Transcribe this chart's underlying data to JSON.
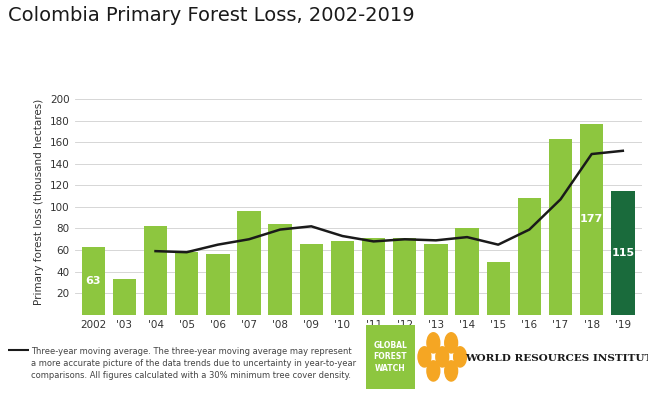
{
  "title": "Colombia Primary Forest Loss, 2002-2019",
  "ylabel": "Primary forest loss (thousand hectares)",
  "years": [
    2002,
    2003,
    2004,
    2005,
    2006,
    2007,
    2008,
    2009,
    2010,
    2011,
    2012,
    2013,
    2014,
    2015,
    2016,
    2017,
    2018,
    2019
  ],
  "bar_values": [
    63,
    33,
    82,
    58,
    56,
    96,
    84,
    66,
    68,
    71,
    71,
    66,
    80,
    49,
    108,
    163,
    177,
    115
  ],
  "bar_color_default": "#8dc63f",
  "bar_color_last": "#1a6b3c",
  "moving_avg": [
    null,
    null,
    59,
    58,
    65,
    70,
    79,
    82,
    73,
    68,
    70,
    69,
    72,
    65,
    79,
    107,
    149,
    152
  ],
  "line_color": "#1a1a1a",
  "ylim": [
    0,
    210
  ],
  "yticks": [
    0,
    20,
    40,
    60,
    80,
    100,
    120,
    140,
    160,
    180,
    200
  ],
  "tick_labels": [
    "2002",
    "'03",
    "'04",
    "'05",
    "'06",
    "'07",
    "'08",
    "'09",
    "'10",
    "'11",
    "'12",
    "'13",
    "'14",
    "'15",
    "'16",
    "'17",
    "'18",
    "'19"
  ],
  "bar_labels": {
    "0": "63",
    "16": "177",
    "17": "115"
  },
  "legend_text_line1": "—  Three-year moving average. The three-year moving average may represent",
  "legend_text_line2": "a more accurate picture of the data trends due to uncertainty in year-to-year",
  "legend_text_line3": "comparisons. All figures calculated with a 30% minimum tree cover density.",
  "title_fontsize": 14,
  "bg_color": "#ffffff",
  "grid_color": "#d0d0d0",
  "gfw_color": "#8dc63f",
  "wri_color": "#1a1a1a"
}
